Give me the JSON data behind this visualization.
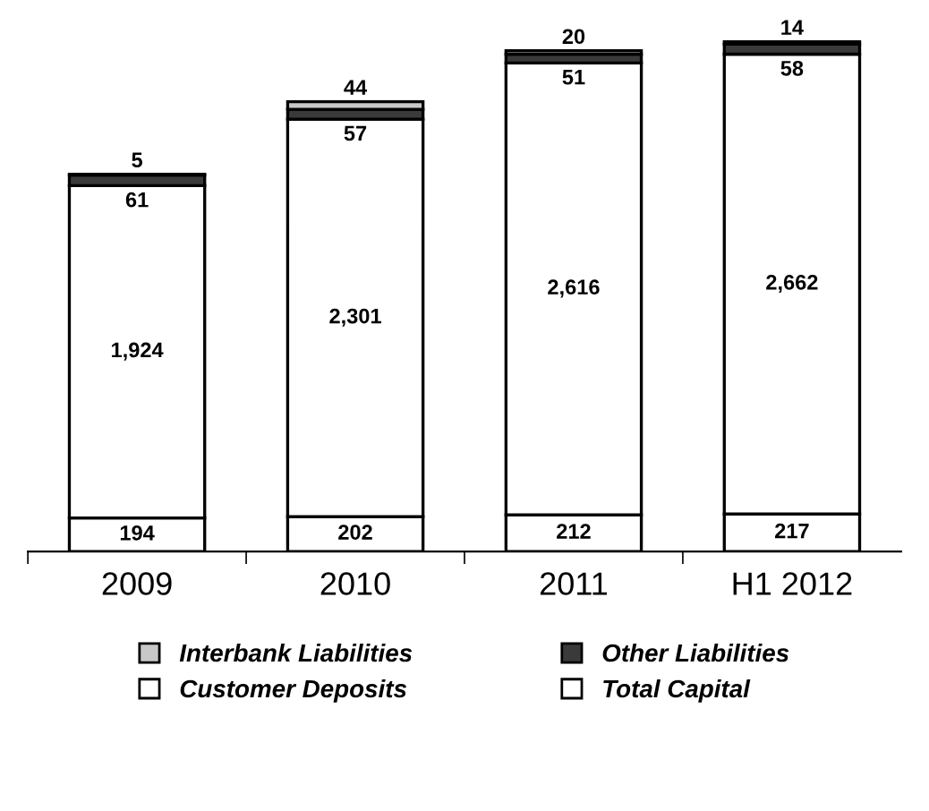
{
  "chart_data": {
    "type": "bar",
    "stacked": true,
    "tick_labels": "x",
    "categories": [
      "2009",
      "2010",
      "2011",
      "H1 2012"
    ],
    "series": [
      {
        "name": "Total Capital",
        "color": "#ffffff",
        "values": [
          194,
          202,
          212,
          217
        ],
        "value_labels": [
          "194",
          "202",
          "212",
          "217"
        ]
      },
      {
        "name": "Customer Deposits",
        "color": "#ffffff",
        "values": [
          1924,
          2301,
          2616,
          2662
        ],
        "value_labels": [
          "1,924",
          "2,301",
          "2,616",
          "2,662"
        ]
      },
      {
        "name": "Other Liabilities",
        "color": "#3a3a3a",
        "values": [
          61,
          57,
          51,
          58
        ],
        "value_labels": [
          "61",
          "57",
          "51",
          "58"
        ]
      },
      {
        "name": "Interbank Liabilities",
        "color": "#c8c8c8",
        "values": [
          5,
          44,
          20,
          14
        ],
        "value_labels": [
          "5",
          "44",
          "20",
          "14"
        ]
      }
    ],
    "legend": "bottom",
    "grid": false
  }
}
